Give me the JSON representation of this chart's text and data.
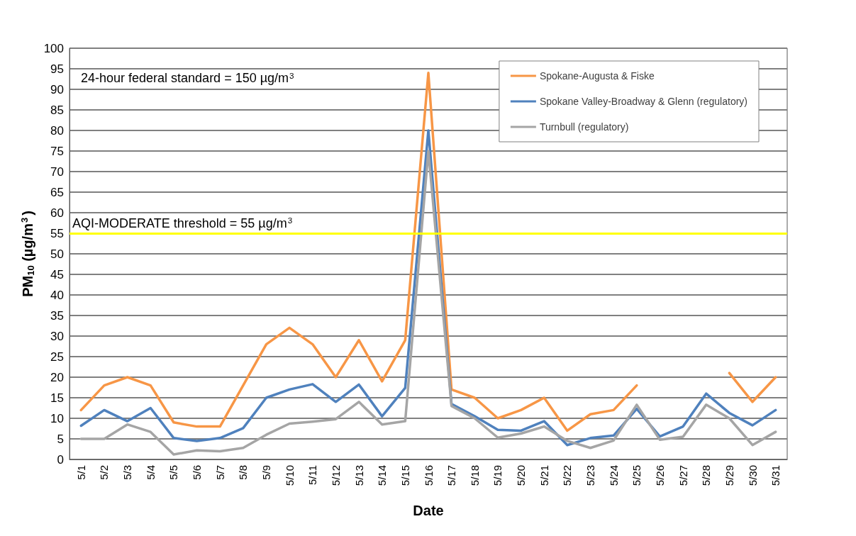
{
  "chart_data": {
    "type": "line",
    "xlabel": "Date",
    "ylabel": "PM$_{10}$ (µg/m$^{3}$)",
    "categories": [
      "5/1",
      "5/2",
      "5/3",
      "5/4",
      "5/5",
      "5/6",
      "5/7",
      "5/8",
      "5/9",
      "5/10",
      "5/11",
      "5/12",
      "5/13",
      "5/14",
      "5/15",
      "5/16",
      "5/17",
      "5/18",
      "5/19",
      "5/20",
      "5/21",
      "5/22",
      "5/23",
      "5/24",
      "5/25",
      "5/26",
      "5/27",
      "5/28",
      "5/29",
      "5/30",
      "5/31"
    ],
    "series": [
      {
        "name": "Spokane-Augusta & Fiske",
        "color": "#f79646",
        "values": [
          12,
          18,
          20,
          18,
          9,
          8,
          8,
          18,
          28,
          32,
          28,
          20,
          29,
          19,
          29,
          94,
          17,
          15,
          10,
          12,
          15,
          7,
          11,
          12,
          18,
          null,
          null,
          null,
          21,
          14,
          20
        ]
      },
      {
        "name": "Spokane Valley-Broadway & Glenn (regulatory)",
        "color": "#4f81bd",
        "values": [
          8.2,
          12,
          9.3,
          12.5,
          5.2,
          4.5,
          5.2,
          7.6,
          15,
          17,
          18.3,
          14,
          18.2,
          10.5,
          17.4,
          80,
          13.5,
          10.5,
          7.2,
          7,
          9.3,
          3.5,
          5.2,
          5.8,
          12.3,
          5.6,
          8,
          16,
          11.3,
          8.3,
          12
        ]
      },
      {
        "name": "Turnbull (regulatory)",
        "color": "#a5a5a5",
        "values": [
          5,
          5,
          8.5,
          6.7,
          1.2,
          2.2,
          2,
          2.8,
          6,
          8.7,
          9.2,
          9.8,
          14,
          8.5,
          9.3,
          75,
          13,
          10,
          5.3,
          6.3,
          8,
          4.5,
          2.8,
          4.6,
          13.3,
          4.8,
          5.5,
          13.3,
          10,
          3.5,
          6.7
        ]
      }
    ],
    "ylim": [
      0,
      100
    ],
    "yticks": [
      0,
      5,
      10,
      15,
      20,
      25,
      30,
      35,
      40,
      45,
      50,
      55,
      60,
      65,
      70,
      75,
      80,
      85,
      90,
      95,
      100
    ],
    "ref_lines": [
      {
        "axis": "y",
        "value": 55,
        "label": "AQI-MODERATE threshold = 55 µg/m$^{3}$",
        "color": "#ffff00"
      }
    ],
    "annotations": [
      "24-hour federal standard = 150 µg/m$^{3}$"
    ],
    "grid": "y",
    "legend": "top right",
    "marker": "none",
    "line_style": "solid"
  }
}
